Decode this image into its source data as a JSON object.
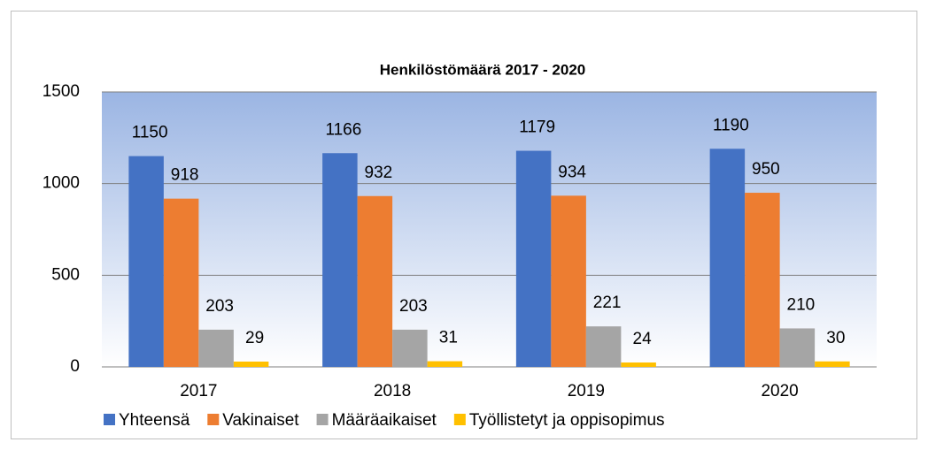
{
  "chart_data": {
    "type": "bar",
    "title": "Henkilöstömäärä  2017 - 2020",
    "categories": [
      "2017",
      "2018",
      "2019",
      "2020"
    ],
    "series": [
      {
        "name": "Yhteensä",
        "color": "#4472c4",
        "values": [
          1150,
          1166,
          1179,
          1190
        ]
      },
      {
        "name": "Vakinaiset",
        "color": "#ed7d31",
        "values": [
          918,
          932,
          934,
          950
        ]
      },
      {
        "name": "Määräaikaiset",
        "color": "#a5a5a5",
        "values": [
          203,
          203,
          221,
          210
        ]
      },
      {
        "name": "Työllistetyt ja oppisopimus",
        "color": "#ffc000",
        "values": [
          29,
          31,
          24,
          30
        ]
      }
    ],
    "ylim": [
      0,
      1500
    ],
    "yticks": [
      0,
      500,
      1000,
      1500
    ],
    "grid": true,
    "legend": "bottom"
  }
}
